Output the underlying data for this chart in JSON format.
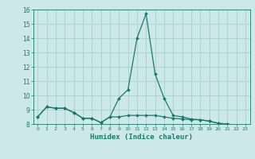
{
  "xlabel": "Humidex (Indice chaleur)",
  "x_values": [
    0,
    1,
    2,
    3,
    4,
    5,
    6,
    7,
    8,
    9,
    10,
    11,
    12,
    13,
    14,
    15,
    16,
    17,
    18,
    19,
    20,
    21,
    22,
    23
  ],
  "line1_y": [
    8.5,
    9.2,
    9.1,
    9.1,
    8.8,
    8.4,
    8.4,
    8.1,
    8.5,
    8.5,
    8.6,
    8.6,
    8.6,
    8.6,
    8.5,
    8.4,
    8.35,
    8.3,
    8.3,
    8.2,
    8.05,
    8.0,
    7.9,
    7.75
  ],
  "line2_y": [
    8.5,
    9.2,
    9.1,
    9.1,
    8.8,
    8.4,
    8.4,
    8.1,
    8.5,
    9.8,
    10.4,
    14.0,
    15.7,
    11.5,
    9.8,
    8.6,
    8.5,
    8.35,
    8.3,
    8.2,
    8.05,
    8.0,
    7.9,
    7.75
  ],
  "line_color": "#1a7a6e",
  "bg_color": "#cce8e8",
  "grid_color": "#aacfcf",
  "ylim": [
    8,
    16
  ],
  "xlim": [
    -0.5,
    23.5
  ],
  "yticks": [
    8,
    9,
    10,
    11,
    12,
    13,
    14,
    15,
    16
  ],
  "xticks": [
    0,
    1,
    2,
    3,
    4,
    5,
    6,
    7,
    8,
    9,
    10,
    11,
    12,
    13,
    14,
    15,
    16,
    17,
    18,
    19,
    20,
    21,
    22,
    23
  ]
}
